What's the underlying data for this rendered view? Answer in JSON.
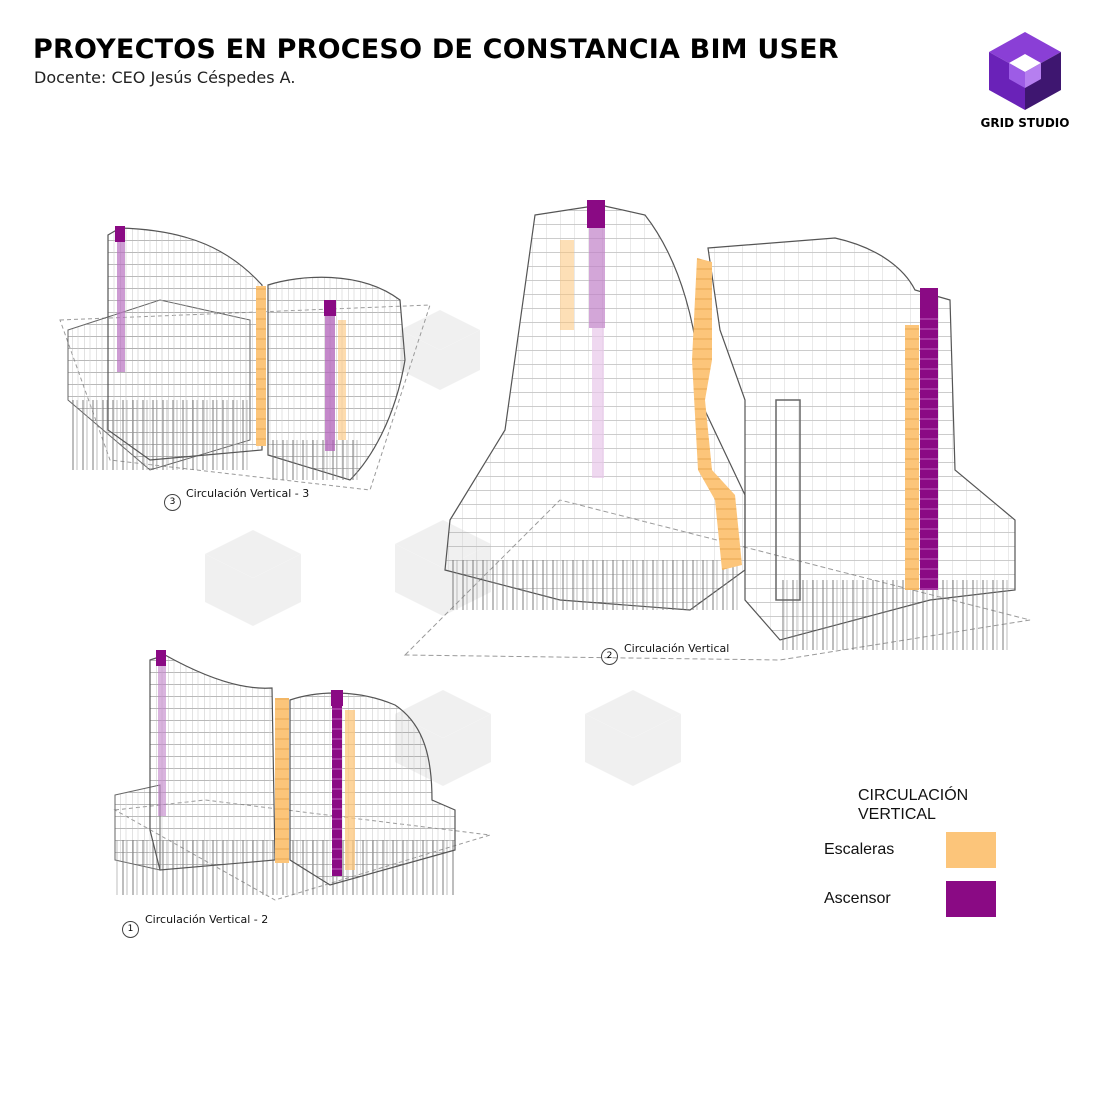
{
  "header": {
    "title": "PROYECTOS EN PROCESO DE CONSTANCIA BIM USER",
    "subtitle": "Docente: CEO Jesús Céspedes A."
  },
  "brand": {
    "name": "GRID STUDIO",
    "logo_icon": "isometric-cube-logo-icon",
    "colors": {
      "dark": "#4a1a7a",
      "mid": "#7a2cc4",
      "light": "#a866e8"
    }
  },
  "views": [
    {
      "number": "3",
      "label": "Circulación Vertical - 3"
    },
    {
      "number": "2",
      "label": "Circulación Vertical"
    },
    {
      "number": "1",
      "label": "Circulación Vertical - 2"
    }
  ],
  "legend": {
    "title": "CIRCULACIÓN VERTICAL",
    "items": [
      {
        "label": "Escaleras",
        "color": "#fcc57a"
      },
      {
        "label": "Ascensor",
        "color": "#8a0a84"
      }
    ]
  },
  "watermark": "GRID STUDIO"
}
